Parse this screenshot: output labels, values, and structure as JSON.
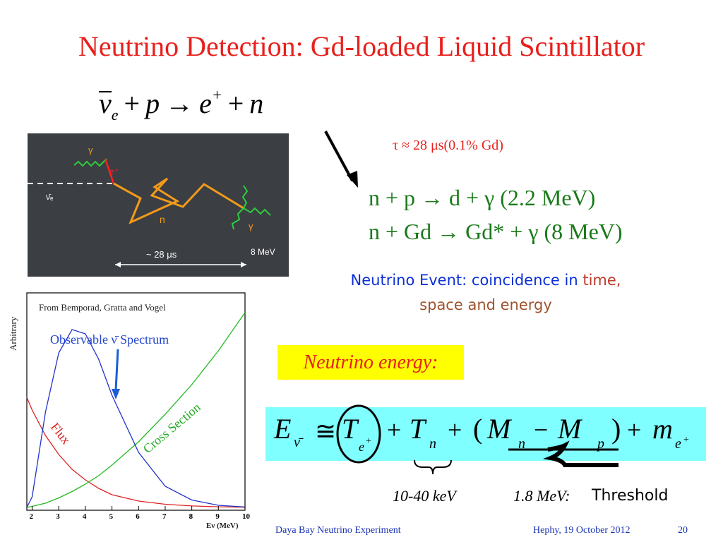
{
  "title": "Neutrino Detection: Gd-loaded Liquid Scintillator",
  "reaction": {
    "nu": "ν",
    "nu_sub": "e",
    "plus1": "+",
    "p": "p",
    "arrow": "→",
    "e": "e",
    "e_sup": "+",
    "plus2": "+",
    "n": "n"
  },
  "diagram": {
    "gamma_top": "γ",
    "e_plus": "e⁺",
    "nu_e": "ν̄ₑ",
    "n": "n",
    "gamma_bottom": "γ",
    "time": "~ 28 μs",
    "energy": "8 MeV"
  },
  "spectrum": {
    "source": "From Bemporad, Gratta and Vogel",
    "observable": "Observable ν̄  Spectrum",
    "ylabel": "Arbitrary",
    "xlabel": "Eν (MeV)",
    "flux": "Flux",
    "cross_section": "Cross Section",
    "ticks": [
      "2",
      "3",
      "4",
      "5",
      "6",
      "7",
      "8",
      "9",
      "10"
    ]
  },
  "tau": "τ ≈ 28 μs(0.1% Gd)",
  "rxn1": "n + p    → d     + γ (2.2 MeV)",
  "rxn2": "n + Gd → Gd* + γ (8    MeV)",
  "event": {
    "part1": "Neutrino Event: coincidence in ",
    "part2": "time,",
    "line2": "space and energy"
  },
  "neutrino_energy": "Neutrino energy:",
  "formula": {
    "E": "E",
    "E_sub": "ν̄",
    "approx": "≅",
    "T1": "T",
    "T1_sub": "e",
    "T1_sup": "+",
    "plus1": "+",
    "T2": "T",
    "T2_sub": "n",
    "plus2": "+",
    "lpar": "(",
    "M1": "M",
    "M1_sub": "n",
    "minus": "−",
    "M2": "M",
    "M2_sub": "p",
    "rpar": ")",
    "plus3": "+",
    "m": "m",
    "m_sub": "e",
    "m_sup": "+"
  },
  "labels": {
    "kev": "10-40 keV",
    "mev": "1.8 MeV:",
    "threshold": "Threshold"
  },
  "footer": {
    "experiment": "Daya Bay Neutrino Experiment",
    "date": "Hephy, 19 October 2012",
    "page": "20"
  },
  "colors": {
    "title": "#e8201c",
    "green": "#1a7a1a",
    "blue": "#0b2fd6",
    "yellow": "#ffff00",
    "cyan": "#7fffff"
  },
  "chart_data": {
    "type": "line",
    "title": "From Bemporad, Gratta and Vogel",
    "xlabel": "Eν (MeV)",
    "ylabel": "Arbitrary",
    "xlim": [
      1.8,
      10
    ],
    "ylim": [
      0,
      1
    ],
    "x": [
      1.8,
      2,
      2.5,
      3,
      3.5,
      4,
      4.5,
      5,
      6,
      7,
      8,
      9,
      10
    ],
    "series": [
      {
        "name": "Flux",
        "values": [
          0.52,
          0.46,
          0.34,
          0.25,
          0.18,
          0.13,
          0.09,
          0.06,
          0.03,
          0.015,
          0.007,
          0.003,
          0.001
        ]
      },
      {
        "name": "Cross Section",
        "values": [
          0.0,
          0.005,
          0.02,
          0.045,
          0.075,
          0.11,
          0.15,
          0.2,
          0.31,
          0.44,
          0.58,
          0.74,
          0.92
        ]
      },
      {
        "name": "Observable ν̄  Spectrum",
        "values": [
          0.0,
          0.05,
          0.45,
          0.73,
          0.84,
          0.82,
          0.7,
          0.53,
          0.26,
          0.1,
          0.035,
          0.01,
          0.002
        ]
      }
    ]
  }
}
